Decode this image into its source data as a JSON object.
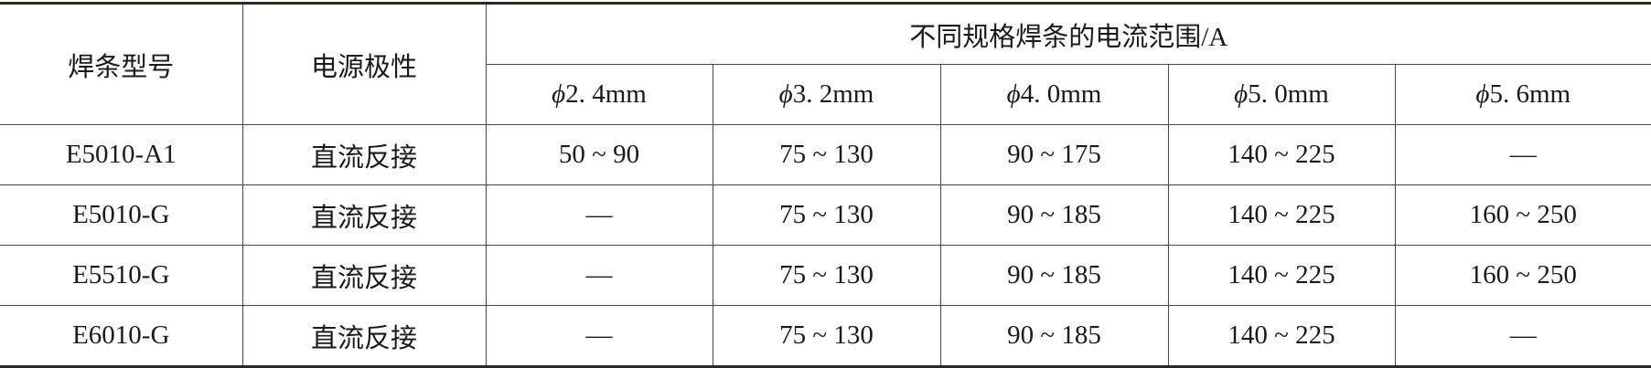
{
  "header": {
    "col_model": "焊条型号",
    "col_polarity": "电源极性",
    "group_title": "不同规格焊条的电流范围/A",
    "diameters": [
      {
        "symbol": "ϕ",
        "value": "2. 4mm"
      },
      {
        "symbol": "ϕ",
        "value": "3. 2mm"
      },
      {
        "symbol": "ϕ",
        "value": "4. 0mm"
      },
      {
        "symbol": "ϕ",
        "value": "5. 0mm"
      },
      {
        "symbol": "ϕ",
        "value": "5. 6mm"
      }
    ]
  },
  "rows": [
    {
      "model": "E5010-A1",
      "polarity": "直流反接",
      "values": [
        "50 ~ 90",
        "75 ~ 130",
        "90 ~ 175",
        "140 ~ 225",
        "—"
      ]
    },
    {
      "model": "E5010-G",
      "polarity": "直流反接",
      "values": [
        "—",
        "75 ~ 130",
        "90 ~ 185",
        "140 ~ 225",
        "160 ~ 250"
      ]
    },
    {
      "model": "E5510-G",
      "polarity": "直流反接",
      "values": [
        "—",
        "75 ~ 130",
        "90 ~ 185",
        "140 ~ 225",
        "160 ~ 250"
      ]
    },
    {
      "model": "E6010-G",
      "polarity": "直流反接",
      "values": [
        "—",
        "75 ~ 130",
        "90 ~ 185",
        "140 ~ 225",
        "—"
      ]
    }
  ]
}
